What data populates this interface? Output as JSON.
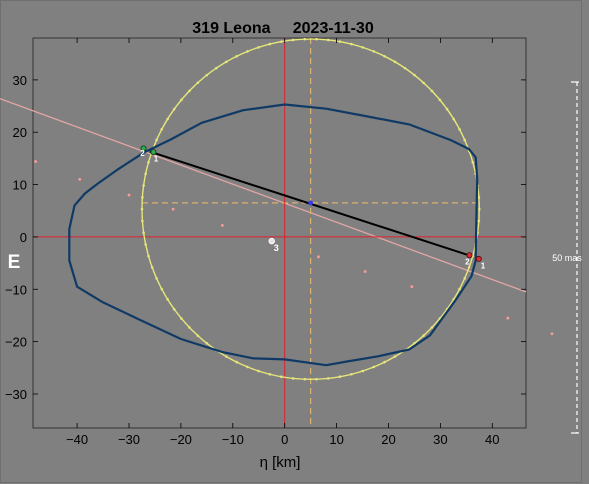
{
  "chart_data": {
    "type": "scatter",
    "title": "319 Leona     2023-11-30",
    "xlabel": "η [km]",
    "ylabel": "",
    "xlim": [
      -48.5,
      46.5
    ],
    "ylim": [
      -36.5,
      38
    ],
    "xticks": [
      -40,
      -30,
      -20,
      -10,
      0,
      10,
      20,
      30,
      40
    ],
    "yticks": [
      -30,
      -20,
      -10,
      0,
      10,
      20,
      30
    ],
    "grid": false,
    "direction_label": "E",
    "scale_label": "50 mas",
    "circle": {
      "center": [
        5,
        5.3
      ],
      "radius": 32.5
    },
    "dashed_cross": {
      "x": 5,
      "y": 6.5
    },
    "center_point": [
      5,
      6.5
    ],
    "shape_outline": [
      [
        -38.5,
        8.3
      ],
      [
        -36,
        10.2
      ],
      [
        -32,
        13
      ],
      [
        -27,
        16.2
      ],
      [
        -22,
        18.6
      ],
      [
        -16,
        21.8
      ],
      [
        -8,
        24.2
      ],
      [
        0,
        25.3
      ],
      [
        8,
        24.5
      ],
      [
        16,
        23
      ],
      [
        24,
        21.5
      ],
      [
        32,
        18.5
      ],
      [
        35.5,
        16.8
      ],
      [
        36.8,
        15.2
      ],
      [
        37.1,
        11
      ],
      [
        36.9,
        2
      ],
      [
        36.8,
        -4.5
      ],
      [
        36,
        -7.5
      ],
      [
        33,
        -12
      ],
      [
        28,
        -18.8
      ],
      [
        24,
        -21.5
      ],
      [
        18,
        -22.8
      ],
      [
        12,
        -23.8
      ],
      [
        8,
        -24.5
      ],
      [
        0,
        -23.4
      ],
      [
        -6,
        -23.2
      ],
      [
        -12,
        -22
      ],
      [
        -20,
        -19.5
      ],
      [
        -28,
        -15.8
      ],
      [
        -35,
        -12.5
      ],
      [
        -40,
        -9.5
      ],
      [
        -41.5,
        -4.5
      ],
      [
        -41.5,
        1.5
      ],
      [
        -40.5,
        6
      ]
    ],
    "chord": {
      "from": [
        -26,
        16.3
      ],
      "to": [
        35.8,
        -3.6
      ]
    },
    "chord_extension": {
      "from": [
        -48.5,
        24.1
      ],
      "to": [
        46.5,
        -10.5
      ]
    },
    "endpoint_labels": [
      {
        "text": "2",
        "at": [
          -27.4,
          16.2
        ]
      },
      {
        "text": "1",
        "at": [
          -24.8,
          15.2
        ]
      },
      {
        "text": "2",
        "at": [
          35.2,
          -4.5
        ]
      },
      {
        "text": "1",
        "at": [
          38.2,
          -5.3
        ]
      }
    ],
    "stars": [
      [
        -48,
        14.4
      ],
      [
        -39.5,
        11
      ],
      [
        -30,
        8
      ],
      [
        -21.5,
        5.3
      ],
      [
        -12,
        2.2
      ],
      [
        6.5,
        -3.8
      ],
      [
        15.5,
        -6.6
      ],
      [
        24.5,
        -9.5
      ],
      [
        43,
        -15.5
      ],
      [
        51.5,
        -18.5
      ]
    ],
    "marked_star": {
      "text": "3",
      "at": [
        -2.5,
        -0.8
      ]
    },
    "colors": {
      "background": "#808080",
      "circle": "#e6e67a",
      "outline": "#103a66",
      "chord": "#000000",
      "chord_extension": "#e3a5a5",
      "axes_crosshair": "#e0202a",
      "dashed_cross": "#ddb26a",
      "center_point": "#3a3ae8",
      "axis_text": "#000000",
      "label_text": "#ffffff"
    }
  }
}
